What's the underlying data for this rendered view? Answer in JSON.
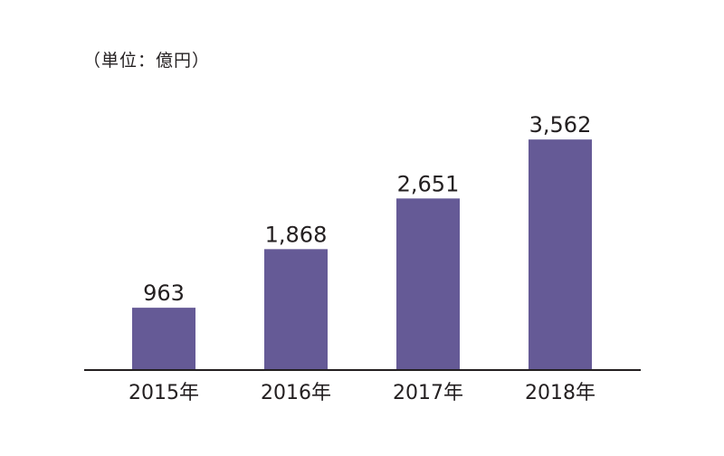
{
  "chart_data": {
    "type": "bar",
    "unit_label": "（単位：億円）",
    "title": "",
    "xlabel": "",
    "ylabel": "",
    "categories": [
      "2015年",
      "2016年",
      "2017年",
      "2018年"
    ],
    "values": [
      963,
      1868,
      2651,
      3562
    ],
    "value_labels": [
      "963",
      "1,868",
      "2,651",
      "3,562"
    ],
    "ylim": [
      0,
      3900
    ],
    "grid": false,
    "legend": "none",
    "bar_color": "#655a96",
    "axis_color": "#231f20"
  }
}
